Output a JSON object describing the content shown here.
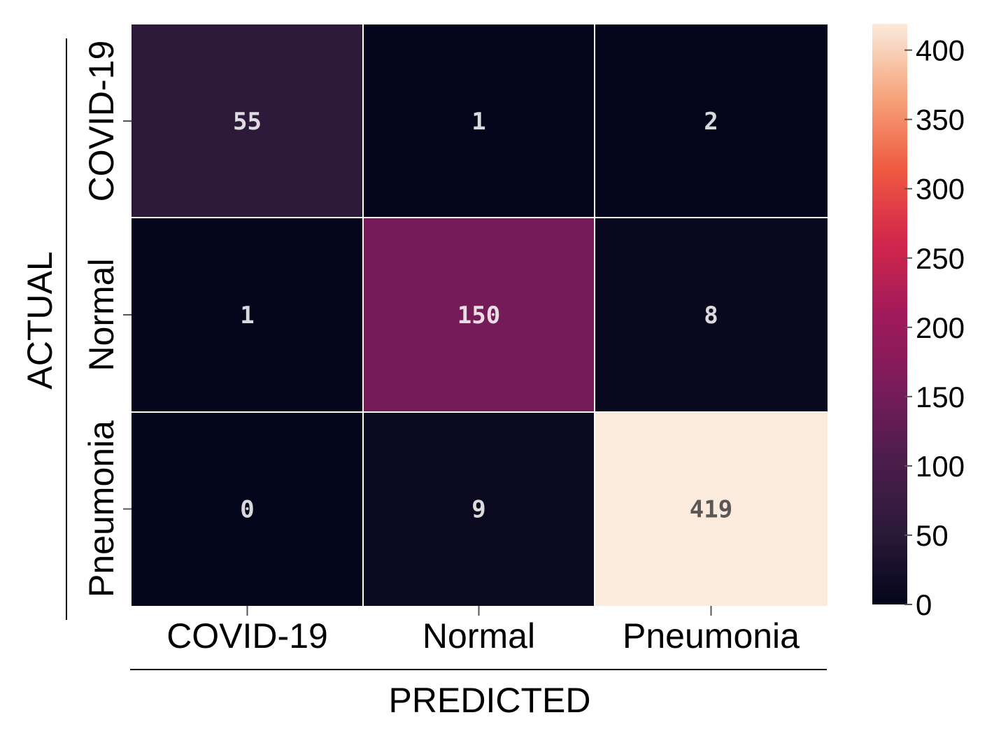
{
  "chart_data": {
    "type": "heatmap",
    "title": "",
    "xlabel": "PREDICTED",
    "ylabel": "ACTUAL",
    "x_categories": [
      "COVID-19",
      "Normal",
      "Pneumonia"
    ],
    "y_categories": [
      "COVID-19",
      "Normal",
      "Pneumonia"
    ],
    "values": [
      [
        55,
        1,
        2
      ],
      [
        1,
        150,
        8
      ],
      [
        0,
        9,
        419
      ]
    ],
    "colorbar": {
      "range": [
        0,
        419
      ],
      "ticks": [
        0,
        50,
        100,
        150,
        200,
        250,
        300,
        350,
        400
      ],
      "tick_labels": [
        "0",
        "50",
        "100",
        "150",
        "200",
        "250",
        "300",
        "350",
        "400"
      ],
      "colormap": "rocket",
      "placement": "right"
    },
    "grid": true,
    "cell_text_colors": {
      "dark": "#ffffff",
      "light": "#262626"
    }
  }
}
